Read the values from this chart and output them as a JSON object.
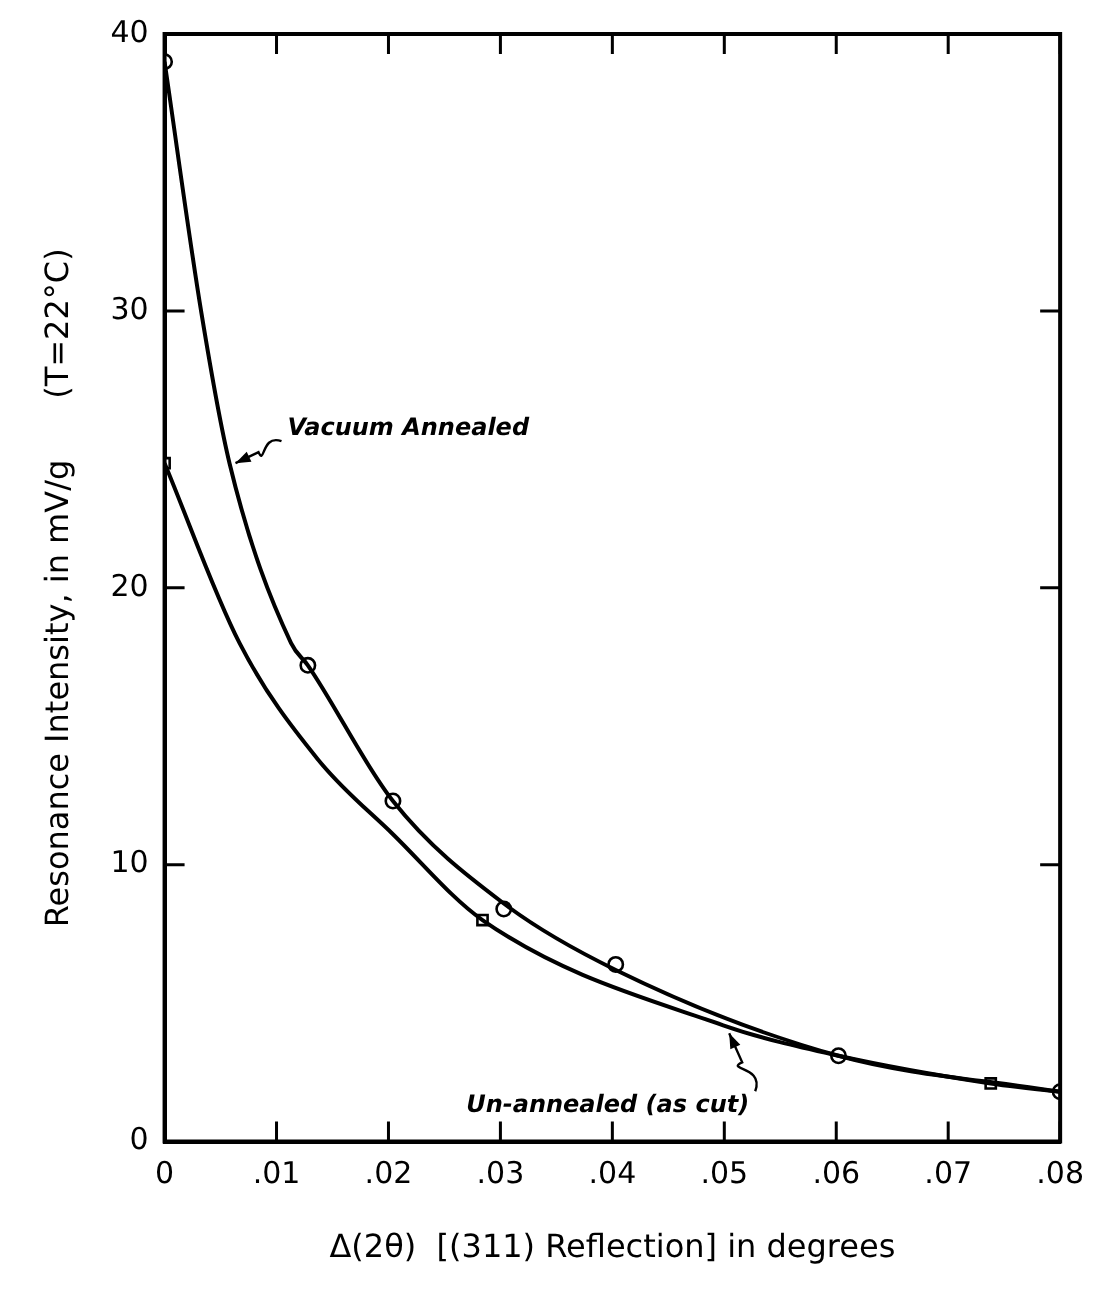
{
  "chart_data": {
    "type": "line",
    "xlabel": "Δ(2θ)  [(311) Reflection] in degrees",
    "ylabel": "Resonance Intensity, in mV/g      (T=22°C)",
    "xlim": [
      0,
      0.08
    ],
    "ylim": [
      0,
      40
    ],
    "xticks": [
      0,
      {
        "value": 0.01,
        "label": ".01"
      },
      {
        "value": 0.02,
        "label": ".02"
      },
      {
        "value": 0.03,
        "label": ".03"
      },
      {
        "value": 0.04,
        "label": ".04"
      },
      {
        "value": 0.05,
        "label": ".05"
      },
      {
        "value": 0.06,
        "label": ".06"
      },
      {
        "value": 0.07,
        "label": ".07"
      },
      {
        "value": 0.08,
        "label": ".08"
      }
    ],
    "yticks": [
      0,
      10,
      20,
      30,
      40
    ],
    "grid": false,
    "legend": false,
    "series": [
      {
        "name": "Vacuum Annealed",
        "type": "line",
        "color": "#000000",
        "marker": "none",
        "x": [
          0,
          0.0033,
          0.0058,
          0.0113,
          0.0128,
          0.0204,
          0.0303,
          0.0403,
          0.0602,
          0.08
        ],
        "values": [
          39.0,
          29.9,
          24.5,
          18.0,
          17.2,
          12.3,
          8.6,
          6.2,
          3.1,
          1.8
        ]
      },
      {
        "name": "Un-annealed (as cut)",
        "type": "line",
        "color": "#000000",
        "marker": "none",
        "x": [
          0,
          0.0067,
          0.0137,
          0.0204,
          0.0284,
          0.0499,
          0.0602,
          0.0738,
          0.08
        ],
        "values": [
          24.5,
          18.0,
          13.8,
          11.1,
          8.0,
          4.2,
          3.1,
          2.1,
          1.8
        ]
      },
      {
        "type": "scatter",
        "color": "#000000",
        "marker": "circle",
        "x": [
          0,
          0.0128,
          0.0204,
          0.0303,
          0.0403,
          0.0602,
          0.08
        ],
        "values": [
          39.0,
          17.2,
          12.3,
          8.4,
          6.4,
          3.1,
          1.8
        ]
      },
      {
        "type": "scatter",
        "color": "#000000",
        "marker": "square",
        "x": [
          0,
          0.0284,
          0.0738
        ],
        "values": [
          24.5,
          8.0,
          2.1
        ]
      }
    ]
  }
}
